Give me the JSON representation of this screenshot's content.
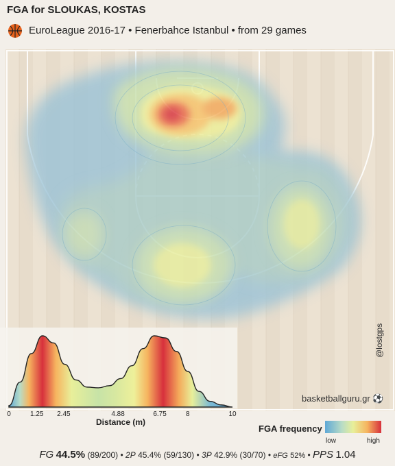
{
  "header": {
    "title": "FGA for SLOUKAS, KOSTAS",
    "subtitle": "EuroLeague 2016-17 • Fenerbahce Istanbul • from  29 games"
  },
  "watermark": "basketballguru.gr",
  "handle": "@lostgps",
  "legend": {
    "title": "FGA frequency",
    "low": "low",
    "high": "high"
  },
  "stats": {
    "fg_label": "FG",
    "fg_pct": "44.5%",
    "fg_detail": "(89/200)",
    "p2_label": "2P",
    "p2_pct": "45.4%",
    "p2_detail": "(59/130)",
    "p3_label": "3P",
    "p3_pct": "42.9%",
    "p3_detail": "(30/70)",
    "efg_label": "eFG",
    "efg_pct": "52%",
    "pps_label": "PPS",
    "pps_value": "1.04",
    "sep": "•"
  },
  "chart_data": [
    {
      "type": "heatmap",
      "title": "FGA for SLOUKAS, KOSTAS",
      "description_hotspots": [
        {
          "zone": "paint-left",
          "intensity": 1.0
        },
        {
          "zone": "paint-right",
          "intensity": 0.8
        },
        {
          "zone": "top-of-key",
          "intensity": 0.5
        },
        {
          "zone": "right-wing",
          "intensity": 0.45
        },
        {
          "zone": "left-wing",
          "intensity": 0.3
        }
      ],
      "colors": [
        "#5fa8d6",
        "#b8dcc6",
        "#e8ef9a",
        "#f6b45f",
        "#d7303c"
      ]
    },
    {
      "type": "area",
      "xlabel": "Distance (m)",
      "x_ticks": [
        0,
        1.25,
        2.45,
        4.88,
        6.75,
        8,
        10
      ],
      "x_tick_labels": [
        "0",
        "1.25",
        "2.45",
        "4.88",
        "6.75",
        "8",
        "10"
      ],
      "xlim": [
        0,
        10
      ],
      "x": [
        0,
        0.5,
        1.0,
        1.5,
        2.0,
        2.5,
        3.0,
        3.5,
        4.0,
        4.5,
        5.0,
        5.5,
        6.0,
        6.5,
        7.0,
        7.5,
        8.0,
        8.5,
        9.0,
        9.5,
        10.0
      ],
      "y": [
        0.02,
        0.35,
        0.75,
        1.0,
        0.9,
        0.6,
        0.38,
        0.28,
        0.27,
        0.3,
        0.4,
        0.58,
        0.82,
        1.0,
        0.97,
        0.78,
        0.5,
        0.22,
        0.08,
        0.03,
        0.0
      ]
    }
  ]
}
